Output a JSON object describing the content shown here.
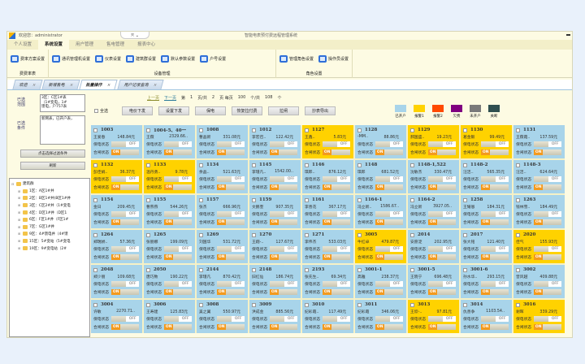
{
  "header": {
    "welcome": "欢迎您：administrator",
    "title": "智能电表预付费远程管理系统",
    "collapse": "⤧ ⌄"
  },
  "menu_tabs": [
    "个人设置",
    "系统设置",
    "用户管理",
    "售电管理",
    "报表中心"
  ],
  "menu_active": 1,
  "ribbon": [
    {
      "group": "费费率表",
      "items": [
        "费率方案设置"
      ]
    },
    {
      "group": "设备管理",
      "items": [
        "通讯管理机设置",
        "仪表设置",
        "建筑群设置",
        "默认参数设置",
        "户号设置"
      ]
    },
    {
      "group": "角色设置",
      "items": [
        "管理角色设置",
        "操作员设置"
      ]
    }
  ],
  "doc_tabs": [
    "欢迎",
    "新增售电",
    "批量操作",
    "用户记录查询"
  ],
  "doc_active": 2,
  "left": {
    "range_label": "已选范围",
    "range_items": [
      "3区：C区1#表",
      "（1#变电，1#",
      "馈电，户757表"
    ],
    "cond_label": "已选条件",
    "cond_value": "新网表，已开户表，",
    "filter_button": "点击选择过滤条件",
    "refresh_button": "刷新",
    "tree_root": "建筑群",
    "tree_items": [
      "1区：A区1#井",
      "2区：B区1#井(B区1#井",
      "3区：C区2#井（1#变电",
      "4区：D区1#井（D区1",
      "6区：F区1#井（F区1#",
      "7区：G区1#井",
      "9区：4#馈电井（4#馈",
      "15区：5#变站（5#变电",
      "19区：9#变电站（2#"
    ]
  },
  "pager": {
    "prev": "上一页",
    "next": "下一页",
    "text1": "第",
    "page": "1",
    "text2": "页/共",
    "pages": "2",
    "text3": "页 每页",
    "per": "100",
    "text4": "个/共",
    "total": "108",
    "text5": "个"
  },
  "toolbar": {
    "select_all": "全选",
    "buttons": [
      "电价下发",
      "设置下发",
      "保电",
      "恢复拉付费",
      "拉闸",
      "抄表导出"
    ]
  },
  "legend": [
    {
      "label": "已开户",
      "color": "#a8d4ea"
    },
    {
      "label": "报警1",
      "color": "#ffd200"
    },
    {
      "label": "报警2",
      "color": "#ff4a00"
    },
    {
      "label": "欠费",
      "color": "#800080"
    },
    {
      "label": "未开户",
      "color": "#7a7a7a"
    },
    {
      "label": "关断",
      "color": "#2f4f4f"
    }
  ],
  "card_labels": {
    "protect": "保电状态",
    "switch": "合闸状态",
    "off": "OFF",
    "on": "ON"
  },
  "cards": [
    {
      "id": "1003",
      "name": "王爱春",
      "amount": "148.84元",
      "status": "已开户"
    },
    {
      "id": "1004-5、40一",
      "name": "王薇",
      "amount": "2329.66..",
      "status": "已开户"
    },
    {
      "id": "1008",
      "name": "曹晶新",
      "amount": "331.08元",
      "status": "已开户"
    },
    {
      "id": "1012",
      "name": "李宏召..",
      "amount": "122.42元",
      "status": "已开户"
    },
    {
      "id": "1127",
      "name": "王鑫..",
      "amount": "5.83元",
      "status": "报警1"
    },
    {
      "id": "1128",
      "name": "-MM..",
      "amount": "88.86元",
      "status": "已开户"
    },
    {
      "id": "1129",
      "name": "郝国盛..",
      "amount": "19.23元",
      "status": "报警1"
    },
    {
      "id": "1130",
      "name": "葛金毅",
      "amount": "99.49元",
      "status": "报警1"
    },
    {
      "id": "1131",
      "name": "王薇霞..",
      "amount": "137.59元",
      "status": "已开户"
    },
    {
      "id": "1132",
      "name": "彭佳娟..",
      "amount": "36.37元",
      "status": "报警1"
    },
    {
      "id": "1133",
      "name": "温丹勇..",
      "amount": "9.78元",
      "status": "报警1"
    },
    {
      "id": "1134",
      "name": "余晶..",
      "amount": "521.63元",
      "status": "已开户"
    },
    {
      "id": "1145",
      "name": "李瑾凡..",
      "amount": "1542.00..",
      "status": "已开户"
    },
    {
      "id": "1146",
      "name": "琪郎..",
      "amount": "876.12元",
      "status": "已开户"
    },
    {
      "id": "1148",
      "name": "琪郎",
      "amount": "681.52元",
      "status": "已开户"
    },
    {
      "id": "1148-1,522",
      "name": "沈敏杰",
      "amount": "330.47元",
      "status": "已开户"
    },
    {
      "id": "1148-2",
      "name": "汪洁..",
      "amount": "565.35元",
      "status": "已开户"
    },
    {
      "id": "1148-3",
      "name": "汪洁..",
      "amount": "624.64元",
      "status": "已开户"
    },
    {
      "id": "1154",
      "name": "金日",
      "amount": "209.45元",
      "status": "已开户"
    },
    {
      "id": "1155",
      "name": "曹燕燕",
      "amount": "544.26元",
      "status": "已开户"
    },
    {
      "id": "1157",
      "name": "张杰",
      "amount": "666.96元",
      "status": "已开户"
    },
    {
      "id": "1159",
      "name": "文鹏奎",
      "amount": "907.35元",
      "status": "已开户"
    },
    {
      "id": "1161",
      "name": "李善花",
      "amount": "367.17元",
      "status": "已开户"
    },
    {
      "id": "1164-1",
      "name": "冯立新..",
      "amount": "1586.67..",
      "status": "已开户"
    },
    {
      "id": "1164-2",
      "name": "冯立新",
      "amount": "3927.05..",
      "status": "已开户"
    },
    {
      "id": "1258",
      "name": "王耀恩",
      "amount": "184.31元",
      "status": "已开户"
    },
    {
      "id": "1263",
      "name": "钱林雪..",
      "amount": "184.49元",
      "status": "已开户"
    },
    {
      "id": "1264",
      "name": "郑瑞娇..",
      "amount": "57.36元",
      "status": "已开户"
    },
    {
      "id": "1265",
      "name": "张丽娜",
      "amount": "199.09元",
      "status": "已开户"
    },
    {
      "id": "1269",
      "name": "刘国华",
      "amount": "531.72元",
      "status": "已开户"
    },
    {
      "id": "1270",
      "name": "王翔-..",
      "amount": "127.67元",
      "status": "已开户"
    },
    {
      "id": "1271",
      "name": "李伟杰",
      "amount": "533.03元",
      "status": "已开户"
    },
    {
      "id": "3005",
      "name": "牛红卓",
      "amount": "479.87元",
      "status": "报警1"
    },
    {
      "id": "2014",
      "name": "安愿淀",
      "amount": "202.95元",
      "status": "已开户"
    },
    {
      "id": "2017",
      "name": "张大铭",
      "amount": "121.40元",
      "status": "已开户"
    },
    {
      "id": "2020",
      "name": "佳气",
      "amount": "155.93元",
      "status": "报警1"
    },
    {
      "id": "2048",
      "name": "郑少丽",
      "amount": "109.68元",
      "status": "已开户"
    },
    {
      "id": "2050",
      "name": "唐巧致",
      "amount": "190.22元",
      "status": "已开户"
    },
    {
      "id": "2144",
      "name": "李瑾凡",
      "amount": "870.42元",
      "status": "已开户"
    },
    {
      "id": "2148",
      "name": "旧红仙",
      "amount": "186.74元",
      "status": "已开户"
    },
    {
      "id": "2193",
      "name": "张先生..",
      "amount": "69.34元",
      "status": "已开户"
    },
    {
      "id": "3001-1",
      "name": "高雅",
      "amount": "238.37元",
      "status": "已开户"
    },
    {
      "id": "3001-5",
      "name": "王晓宁",
      "amount": "696.48元",
      "status": "已开户"
    },
    {
      "id": "3001-6",
      "name": "孙水华..",
      "amount": "293.15元",
      "status": "已开户"
    },
    {
      "id": "3002",
      "name": "曾风越",
      "amount": "409.88元",
      "status": "已开户"
    },
    {
      "id": "3004",
      "name": "许敏",
      "amount": "2270.71..",
      "status": "已开户"
    },
    {
      "id": "3006",
      "name": "王寿建",
      "amount": "125.83元",
      "status": "已开户"
    },
    {
      "id": "3008",
      "name": "吴之翼",
      "amount": "550.97元",
      "status": "已开户"
    },
    {
      "id": "3009",
      "name": "洪成金",
      "amount": "885.56元",
      "status": "已开户"
    },
    {
      "id": "3010",
      "name": "纪彩霞..",
      "amount": "117.49元",
      "status": "已开户"
    },
    {
      "id": "3011",
      "name": "纪彩霞",
      "amount": "346.06元",
      "status": "已开户"
    },
    {
      "id": "3013",
      "name": "王欣-..",
      "amount": "97.81元",
      "status": "报警1"
    },
    {
      "id": "3014",
      "name": "仇善争",
      "amount": "1103.54..",
      "status": "已开户"
    },
    {
      "id": "3016",
      "name": "谢晖",
      "amount": "339.29元",
      "status": "报警1"
    }
  ]
}
